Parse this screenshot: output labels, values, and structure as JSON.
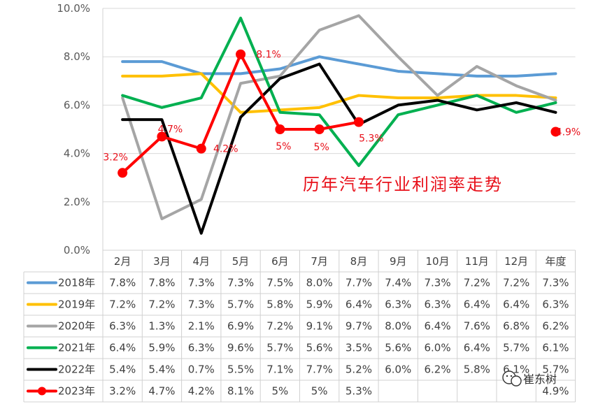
{
  "chart_data": {
    "type": "line",
    "title": "历年汽车行业利润率走势",
    "categories": [
      "2月",
      "3月",
      "4月",
      "5月",
      "6月",
      "7月",
      "8月",
      "9月",
      "10月",
      "11月",
      "12月",
      "年度"
    ],
    "ylim": [
      0,
      10
    ],
    "yticks": [
      "0.0%",
      "2.0%",
      "4.0%",
      "6.0%",
      "8.0%",
      "10.0%"
    ],
    "grid": "horizontal",
    "legend": "table-rows",
    "series": [
      {
        "name": "2018年",
        "color": "#5b9bd5",
        "values": [
          7.8,
          7.8,
          7.3,
          7.3,
          7.5,
          8.0,
          7.7,
          7.4,
          7.3,
          7.2,
          7.2,
          7.3
        ],
        "labels": [
          "7.8%",
          "7.8%",
          "7.3%",
          "7.3%",
          "7.5%",
          "8.0%",
          "7.7%",
          "7.4%",
          "7.3%",
          "7.2%",
          "7.2%",
          "7.3%"
        ]
      },
      {
        "name": "2019年",
        "color": "#ffc000",
        "values": [
          7.2,
          7.2,
          7.3,
          5.7,
          5.8,
          5.9,
          6.4,
          6.3,
          6.3,
          6.4,
          6.4,
          6.3
        ],
        "labels": [
          "7.2%",
          "7.2%",
          "7.3%",
          "5.7%",
          "5.8%",
          "5.9%",
          "6.4%",
          "6.3%",
          "6.3%",
          "6.4%",
          "6.4%",
          "6.3%"
        ]
      },
      {
        "name": "2020年",
        "color": "#a5a5a5",
        "values": [
          6.3,
          1.3,
          2.1,
          6.9,
          7.2,
          9.1,
          9.7,
          8.0,
          6.4,
          7.6,
          6.8,
          6.2
        ],
        "labels": [
          "6.3%",
          "1.3%",
          "2.1%",
          "6.9%",
          "7.2%",
          "9.1%",
          "9.7%",
          "8.0%",
          "6.4%",
          "7.6%",
          "6.8%",
          "6.2%"
        ]
      },
      {
        "name": "2021年",
        "color": "#00b050",
        "values": [
          6.4,
          5.9,
          6.3,
          9.6,
          5.7,
          5.6,
          3.5,
          5.6,
          6.0,
          6.4,
          5.7,
          6.1
        ],
        "labels": [
          "6.4%",
          "5.9%",
          "6.3%",
          "9.6%",
          "5.7%",
          "5.6%",
          "3.5%",
          "5.6%",
          "6.0%",
          "6.4%",
          "5.7%",
          "6.1%"
        ]
      },
      {
        "name": "2022年",
        "color": "#000000",
        "values": [
          5.4,
          5.4,
          0.7,
          5.5,
          7.1,
          7.7,
          5.2,
          6.0,
          6.2,
          5.8,
          6.1,
          5.7
        ],
        "labels": [
          "5.4%",
          "5.4%",
          "0.7%",
          "5.5%",
          "7.1%",
          "7.7%",
          "5.2%",
          "6.0%",
          "6.2%",
          "5.8%",
          "6.1%",
          "5.7%"
        ]
      },
      {
        "name": "2023年",
        "color": "#ff0000",
        "markers": true,
        "values": [
          3.2,
          4.7,
          4.2,
          8.1,
          5,
          5,
          5.3,
          null,
          null,
          null,
          null,
          4.9
        ],
        "labels": [
          "3.2%",
          "4.7%",
          "4.2%",
          "8.1%",
          "5%",
          "5%",
          "5.3%",
          "",
          "",
          "",
          "",
          "4.9%"
        ]
      }
    ]
  },
  "watermark": {
    "text": "崔东树",
    "icon": "wechat-icon"
  }
}
